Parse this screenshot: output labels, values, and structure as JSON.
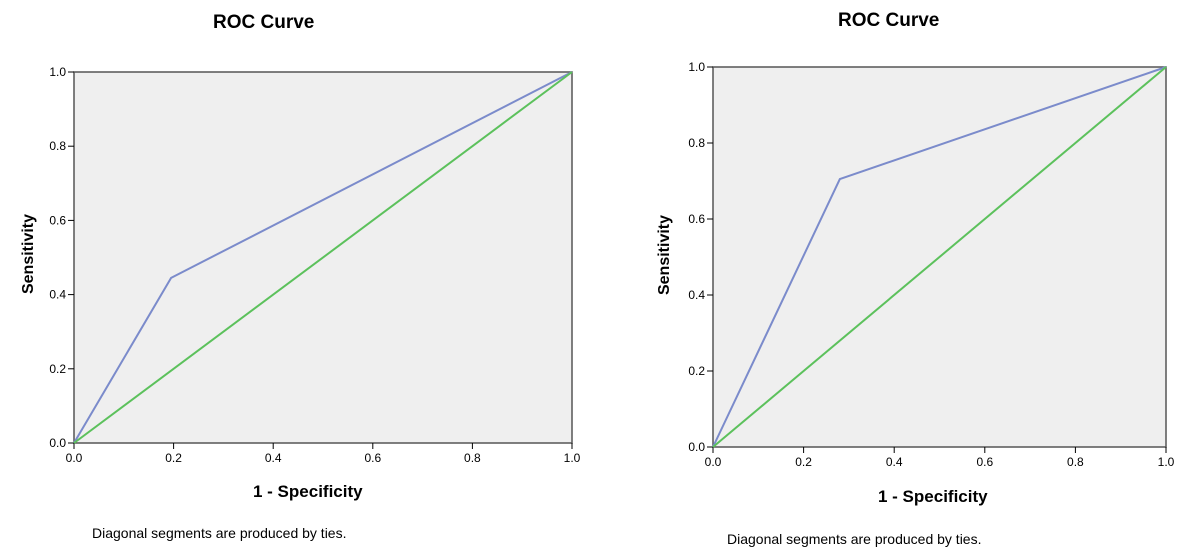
{
  "chart_data": [
    {
      "type": "line",
      "title": "ROC Curve",
      "xlabel": "1 - Specificity",
      "ylabel": "Sensitivity",
      "xlim": [
        0.0,
        1.0
      ],
      "ylim": [
        0.0,
        1.0
      ],
      "ticks": [
        "0.0",
        "0.2",
        "0.4",
        "0.6",
        "0.8",
        "1.0"
      ],
      "background": "#efefef",
      "series": [
        {
          "color": "#7b8bcb",
          "x": [
            0.0,
            0.195,
            1.0
          ],
          "y": [
            0.0,
            0.445,
            1.0
          ]
        },
        {
          "color": "#5cc15c",
          "x": [
            0.0,
            1.0
          ],
          "y": [
            0.0,
            1.0
          ]
        }
      ],
      "note": "Diagonal segments are produced by ties."
    },
    {
      "type": "line",
      "title": "ROC Curve",
      "xlabel": "1 - Specificity",
      "ylabel": "Sensitivity",
      "xlim": [
        0.0,
        1.0
      ],
      "ylim": [
        0.0,
        1.0
      ],
      "ticks": [
        "0.0",
        "0.2",
        "0.4",
        "0.6",
        "0.8",
        "1.0"
      ],
      "background": "#efefef",
      "series": [
        {
          "color": "#7b8bcb",
          "x": [
            0.0,
            0.28,
            1.0
          ],
          "y": [
            0.0,
            0.705,
            1.0
          ]
        },
        {
          "color": "#5cc15c",
          "x": [
            0.0,
            1.0
          ],
          "y": [
            0.0,
            1.0
          ]
        }
      ],
      "note": "Diagonal segments are produced by ties."
    }
  ]
}
